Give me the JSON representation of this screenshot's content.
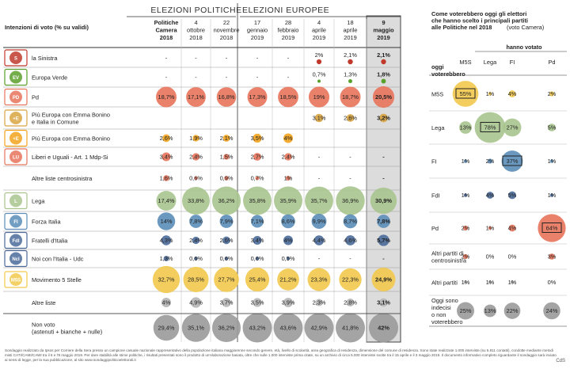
{
  "chart_data": [
    {
      "type": "table",
      "title": "Intenzioni di voto (% su validi)",
      "groups": [
        {
          "label": "ELEZIONI POLITICHE"
        },
        {
          "label": "ELEZIONI EUROPEE"
        }
      ],
      "columns": [
        [
          "Politiche",
          "Camera",
          "2018"
        ],
        [
          "4",
          "ottobre",
          "2018"
        ],
        [
          "22",
          "novembre",
          "2018"
        ],
        [
          "17",
          "gennaio",
          "2019"
        ],
        [
          "28",
          "febbraio",
          "2019"
        ],
        [
          "4",
          "aprile",
          "2019"
        ],
        [
          "18",
          "aprile",
          "2019"
        ],
        [
          "9",
          "maggio",
          "2019"
        ]
      ],
      "highlight_column": 7,
      "rows": [
        {
          "label": [
            "la Sinistra"
          ],
          "logo": "S",
          "color": "#c0392b",
          "values": [
            "-",
            "-",
            "-",
            "-",
            "-",
            "2%",
            "2,1%",
            "2,1%"
          ],
          "dots": [
            null,
            null,
            null,
            null,
            null,
            2,
            2.1,
            2.1
          ]
        },
        {
          "label": [
            "Europa Verde"
          ],
          "logo": "EV",
          "color": "#5aa02c",
          "values": [
            "-",
            "-",
            "-",
            "-",
            "-",
            "0,7%",
            "1,3%",
            "1,8%"
          ],
          "dots": [
            null,
            null,
            null,
            null,
            null,
            0.7,
            1.3,
            1.8
          ]
        },
        {
          "label": [
            "Pd"
          ],
          "logo": "PD",
          "color": "#e8735a",
          "values": [
            "18,7%",
            "17,1%",
            "16,8%",
            "17,3%",
            "18,5%",
            "19%",
            "18,7%",
            "20,5%"
          ],
          "dots": [
            18.7,
            17.1,
            16.8,
            17.3,
            18.5,
            19,
            18.7,
            20.5
          ]
        },
        {
          "label": [
            "Più Europa con Emma Bonino",
            "e Italia in Comune"
          ],
          "logo": "+E",
          "color": "#d9a441",
          "values": [
            "",
            "",
            "",
            "",
            "",
            "3,1%",
            "2,6%",
            "3,2%"
          ],
          "dots": [
            null,
            null,
            null,
            null,
            null,
            3.1,
            2.6,
            3.2
          ]
        },
        {
          "label": [
            "Più Europa con Emma Bonino"
          ],
          "logo": "+E",
          "color": "#f2a31b",
          "values": [
            "2,6%",
            "1,9%",
            "2,1%",
            "3,5%",
            "4%",
            "",
            "",
            ""
          ],
          "dots": [
            2.6,
            1.9,
            2.1,
            3.5,
            4,
            null,
            null,
            null
          ]
        },
        {
          "label": [
            "Liberi e Uguali - Art. 1 Mdp-Si"
          ],
          "logo": "LU",
          "color": "#e8735a",
          "values": [
            "3,4%",
            "2,4%",
            "1,5%",
            "2,7%",
            "2,4%",
            "-",
            "-",
            "-"
          ],
          "dots": [
            3.4,
            2.4,
            1.5,
            2.7,
            2.4,
            null,
            null,
            null
          ]
        },
        {
          "label": [
            "Altre liste centrosinistra"
          ],
          "logo": "",
          "color": "#e8735a",
          "values": [
            "1,6%",
            "0,6%",
            "0,9%",
            "0,7%",
            "1%",
            "-",
            "-",
            "-"
          ],
          "dots": [
            1.6,
            0.6,
            0.9,
            0.7,
            1,
            null,
            null,
            null
          ]
        },
        {
          "label": [
            "Lega"
          ],
          "logo": "L",
          "color": "#a9c48e",
          "values": [
            "17,4%",
            "33,8%",
            "36,2%",
            "35,8%",
            "35,9%",
            "35,7%",
            "36,9%",
            "30,9%"
          ],
          "dots": [
            17.4,
            33.8,
            36.2,
            35.8,
            35.9,
            35.7,
            36.9,
            30.9
          ]
        },
        {
          "label": [
            "Forza Italia"
          ],
          "logo": "FI",
          "color": "#5b8db8",
          "values": [
            "14%",
            "7,8%",
            "7,9%",
            "7,1%",
            "8,6%",
            "9,9%",
            "8,7%",
            "7,8%"
          ],
          "dots": [
            14,
            7.8,
            7.9,
            7.1,
            8.6,
            9.9,
            8.7,
            7.8
          ]
        },
        {
          "label": [
            "Fratelli d'Italia"
          ],
          "logo": "FdI",
          "color": "#4a6a9a",
          "values": [
            "4,3%",
            "2,4%",
            "2,6%",
            "3,4%",
            "4%",
            "4,4%",
            "4,6%",
            "5,7%"
          ],
          "dots": [
            4.3,
            2.4,
            2.6,
            3.4,
            4,
            4.4,
            4.6,
            5.7
          ]
        },
        {
          "label": [
            "Noi con l'Italia - Udc"
          ],
          "logo": "NcI",
          "color": "#4a6a9a",
          "values": [
            "1,3%",
            "0,6%",
            "0,6%",
            "0,6%",
            "0,5%",
            "-",
            "-",
            "-"
          ],
          "dots": [
            1.3,
            0.6,
            0.6,
            0.6,
            0.5,
            null,
            null,
            null
          ]
        },
        {
          "label": [
            "Movimento 5 Stelle"
          ],
          "logo": "M5S",
          "color": "#f2c94c",
          "values": [
            "32,7%",
            "28,5%",
            "27,7%",
            "25,4%",
            "21,2%",
            "23,3%",
            "22,3%",
            "24,9%"
          ],
          "dots": [
            32.7,
            28.5,
            27.7,
            25.4,
            21.2,
            23.3,
            22.3,
            24.9
          ]
        },
        {
          "label": [
            "Altre liste"
          ],
          "logo": "",
          "color": "#b5b5b5",
          "values": [
            "4%",
            "4,9%",
            "3,7%",
            "3,5%",
            "3,9%",
            "2,3%",
            "2,8%",
            "3,1%"
          ],
          "dots": [
            4,
            4.9,
            3.7,
            3.5,
            3.9,
            2.3,
            2.8,
            3.1
          ]
        },
        {
          "label": [
            "Non voto",
            "(astenuti + bianche + nulle)"
          ],
          "logo": "",
          "color": "#9a9a9a",
          "values": [
            "29,4%",
            "35,1%",
            "36,2%",
            "43,2%",
            "43,6%",
            "42,9%",
            "41,8%",
            "42%"
          ],
          "dots": [
            29.4,
            35.1,
            36.2,
            43.2,
            43.6,
            42.9,
            41.8,
            42
          ]
        }
      ]
    },
    {
      "type": "table",
      "title": [
        "Come voterebbero oggi gli elettori",
        "che hanno scelto i principali partiti",
        "alle Politiche nel 2018"
      ],
      "title_note": "(voto Camera)",
      "header_top": "hanno votato",
      "row_header": [
        "oggi",
        "voterebbero"
      ],
      "columns": [
        "M5S",
        "Lega",
        "FI",
        "Pd"
      ],
      "rows": [
        {
          "label": [
            "M5S"
          ],
          "color": "#f2c94c",
          "values": [
            "55%",
            "1%",
            "4%",
            "2%"
          ],
          "dots": [
            55,
            1,
            4,
            2
          ],
          "boxed": 0
        },
        {
          "label": [
            "Lega"
          ],
          "color": "#a9c48e",
          "values": [
            "13%",
            "78%",
            "27%",
            "5%"
          ],
          "dots": [
            13,
            78,
            27,
            5
          ],
          "boxed": 1
        },
        {
          "label": [
            "FI"
          ],
          "color": "#5b8db8",
          "values": [
            "1%",
            "2%",
            "37%",
            "1%"
          ],
          "dots": [
            1,
            2,
            37,
            1
          ],
          "boxed": 2
        },
        {
          "label": [
            "FdI"
          ],
          "color": "#4a6a9a",
          "values": [
            "1%",
            "4%",
            "5%",
            "1%"
          ],
          "dots": [
            1,
            4,
            5,
            1
          ],
          "boxed": null
        },
        {
          "label": [
            "Pd"
          ],
          "color": "#e8735a",
          "values": [
            "2%",
            "1%",
            "4%",
            "64%"
          ],
          "dots": [
            2,
            1,
            4,
            64
          ],
          "boxed": 3
        },
        {
          "label": [
            "Altri partiti di",
            "centrosinistra"
          ],
          "color": "#e8735a",
          "values": [
            "2%",
            "0%",
            "0%",
            "3%"
          ],
          "dots": [
            2,
            0,
            0,
            3
          ],
          "boxed": null
        },
        {
          "label": [
            "Altri partiti"
          ],
          "color": "#b5b5b5",
          "values": [
            "1%",
            "1%",
            "1%",
            "0%"
          ],
          "dots": [
            1,
            1,
            1,
            0
          ],
          "boxed": null
        },
        {
          "label": [
            "Oggi sono",
            "indecisi",
            "o non",
            "voterebbero"
          ],
          "color": "#9a9a9a",
          "values": [
            "25%",
            "13%",
            "22%",
            "24%"
          ],
          "dots": [
            25,
            13,
            22,
            24
          ],
          "boxed": null
        }
      ]
    }
  ],
  "footnote": "Sondaggio realizzato da Ipsos per Corriere della Sera presso un campione casuale nazionale rappresentativo della popolazione italiana maggiorenne secondo genere, età, livello di scolarità, area geografica di residenza, dimensione del comune di residenza. Sono state realizzate 1.000 interviste (su 5.811 contatti), condotte mediante metodi misti CATI/CAMI/CAWI tra il 6 e l'8 maggio 2019. Per dare stabilità alle stime politiche, i risultati presentati sono il prodotto di un'elaborazione basata, oltre che sulle 1.000 interviste prima citate, su un archivio di circa 5.000 interviste svolte tra il 15 aprile e il 3 maggio 2019. Il documento informativo completo riguardante il sondaggio sarà inviato ai sensi di legge, per la sua pubblicazione, al sito www.sondaggipoliticoelettorali.it",
  "credit": "CdS"
}
